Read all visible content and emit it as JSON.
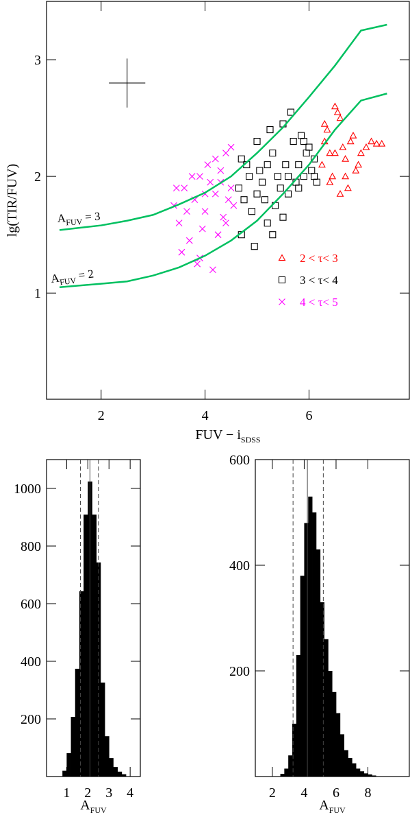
{
  "chart_data": [
    {
      "type": "scatter",
      "ylabel": "lg(TIR/FUV)",
      "xlabel": "FUV − i",
      "xlabel_sub": "SDSS",
      "xlim": [
        0.95,
        7.93
      ],
      "ylim": [
        0.09,
        3.5
      ],
      "xticks": [
        2,
        4,
        6
      ],
      "yticks": [
        1,
        2,
        3
      ],
      "legend": "lower right",
      "error_bar": {
        "x": 2.5,
        "y": 2.8,
        "xerr": 0.35,
        "yerr": 0.21
      },
      "curves": [
        {
          "color": "#00c060",
          "label": {
            "text": "A",
            "sub": "FUV",
            "after": " = 3"
          },
          "x": [
            1.2,
            2,
            2.5,
            3,
            3.5,
            4,
            4.5,
            5,
            5.5,
            6,
            6.5,
            7,
            7.5
          ],
          "values": [
            1.54,
            1.58,
            1.62,
            1.67,
            1.76,
            1.86,
            2.0,
            2.2,
            2.42,
            2.68,
            2.95,
            3.25,
            3.3
          ]
        },
        {
          "color": "#00c060",
          "label": {
            "text": "A",
            "sub": "FUV",
            "after": " = 2"
          },
          "x": [
            1.2,
            2,
            2.5,
            3,
            3.5,
            4,
            4.5,
            5,
            5.5,
            6,
            6.5,
            7,
            7.5
          ],
          "values": [
            1.05,
            1.08,
            1.1,
            1.15,
            1.22,
            1.32,
            1.45,
            1.62,
            1.85,
            2.1,
            2.4,
            2.65,
            2.71
          ]
        }
      ],
      "series": [
        {
          "name": "2 < τ< 3",
          "color": "#ff0000",
          "marker": "triangle",
          "x": [
            6.25,
            6.3,
            6.4,
            6.5,
            6.6,
            6.7,
            6.8,
            6.9,
            7.0,
            7.1,
            7.2,
            7.3,
            6.35,
            6.45,
            6.55,
            6.65,
            6.75,
            6.85,
            6.95,
            7.4,
            6.5,
            6.6,
            6.3,
            6.7,
            6.4
          ],
          "values": [
            2.1,
            2.3,
            1.95,
            2.2,
            2.5,
            2.15,
            2.3,
            2.05,
            2.2,
            2.25,
            2.3,
            2.28,
            2.4,
            2.0,
            2.55,
            2.25,
            1.9,
            2.35,
            2.1,
            2.28,
            2.6,
            1.85,
            2.45,
            2.0,
            2.2
          ]
        },
        {
          "name": "3 < τ< 4",
          "color": "#000000",
          "marker": "square",
          "x": [
            4.65,
            4.7,
            4.8,
            4.9,
            5.0,
            5.1,
            5.2,
            5.3,
            5.4,
            5.5,
            5.6,
            5.7,
            5.8,
            5.9,
            6.0,
            6.1,
            6.15,
            4.75,
            4.85,
            4.95,
            5.05,
            5.15,
            5.25,
            5.35,
            5.45,
            5.55,
            5.65,
            5.75,
            5.85,
            5.95,
            6.05,
            4.7,
            5.0,
            5.3,
            5.6,
            5.9,
            5.2,
            5.5,
            5.8,
            6.1
          ],
          "values": [
            1.9,
            1.5,
            2.1,
            1.7,
            2.3,
            1.95,
            1.6,
            2.2,
            2.0,
            2.45,
            1.85,
            2.3,
            2.1,
            2.0,
            2.25,
            2.15,
            1.95,
            1.8,
            2.0,
            1.4,
            2.05,
            1.8,
            2.4,
            1.75,
            1.9,
            2.1,
            2.55,
            1.95,
            2.35,
            2.2,
            2.05,
            2.15,
            1.85,
            1.5,
            2.0,
            2.3,
            2.1,
            1.65,
            1.9,
            2.0
          ]
        },
        {
          "name": "4 < τ< 5",
          "color": "#ff00ff",
          "marker": "cross",
          "x": [
            3.4,
            3.5,
            3.6,
            3.7,
            3.8,
            3.9,
            4.0,
            4.1,
            4.2,
            4.3,
            4.4,
            4.5,
            4.55,
            3.55,
            3.75,
            3.95,
            4.15,
            4.35,
            4.5,
            3.45,
            3.85,
            4.05,
            4.25,
            4.45,
            3.65,
            4.0,
            4.2,
            4.4,
            3.9,
            4.3
          ],
          "values": [
            1.75,
            1.6,
            1.9,
            1.45,
            1.8,
            1.3,
            1.7,
            1.95,
            1.85,
            2.05,
            2.2,
            1.9,
            1.75,
            1.35,
            2.0,
            1.55,
            1.2,
            1.65,
            2.25,
            1.9,
            1.25,
            2.1,
            1.5,
            1.8,
            1.7,
            1.85,
            2.15,
            1.6,
            2.0,
            1.95
          ]
        }
      ]
    },
    {
      "type": "histogram",
      "xlabel": "A",
      "xlabel_sub": "FUV",
      "color": "#000000",
      "xlim": [
        0.05,
        4.48
      ],
      "ylim": [
        0,
        1100
      ],
      "xticks": [
        1,
        2,
        3,
        4
      ],
      "yticks": [
        200,
        400,
        600,
        800,
        1000
      ],
      "bins": [
        0.8,
        1.0,
        1.2,
        1.4,
        1.6,
        1.8,
        2.0,
        2.2,
        2.4,
        2.6,
        2.8,
        3.0,
        3.2,
        3.4,
        3.6,
        3.8
      ],
      "counts": [
        20,
        81,
        207,
        374,
        643,
        909,
        1024,
        909,
        743,
        326,
        140,
        64,
        33,
        17,
        8
      ],
      "vlines": [
        2.1,
        1.65,
        2.5
      ],
      "vline_styles": [
        "solid",
        "dashed",
        "dashed"
      ]
    },
    {
      "type": "histogram",
      "xlabel": "A",
      "xlabel_sub": "FUV",
      "color": "#000000",
      "xlim": [
        0.93,
        10.6
      ],
      "ylim": [
        0,
        600
      ],
      "xticks": [
        2,
        4,
        6,
        8
      ],
      "yticks": [
        200,
        400,
        600
      ],
      "bins": [
        2.5,
        2.75,
        3.0,
        3.25,
        3.5,
        3.75,
        4.0,
        4.25,
        4.5,
        4.75,
        5.0,
        5.25,
        5.5,
        5.75,
        6.0,
        6.25,
        6.5,
        6.75,
        7.0,
        7.25,
        7.5,
        7.75,
        8.0,
        8.25,
        8.5
      ],
      "counts": [
        5,
        15,
        40,
        100,
        230,
        380,
        480,
        530,
        500,
        430,
        330,
        260,
        200,
        160,
        120,
        80,
        50,
        35,
        25,
        15,
        10,
        6,
        4,
        2
      ],
      "vlines": [
        4.2,
        3.3,
        5.2
      ],
      "vline_styles": [
        "solid",
        "dashed",
        "dashed"
      ]
    }
  ]
}
